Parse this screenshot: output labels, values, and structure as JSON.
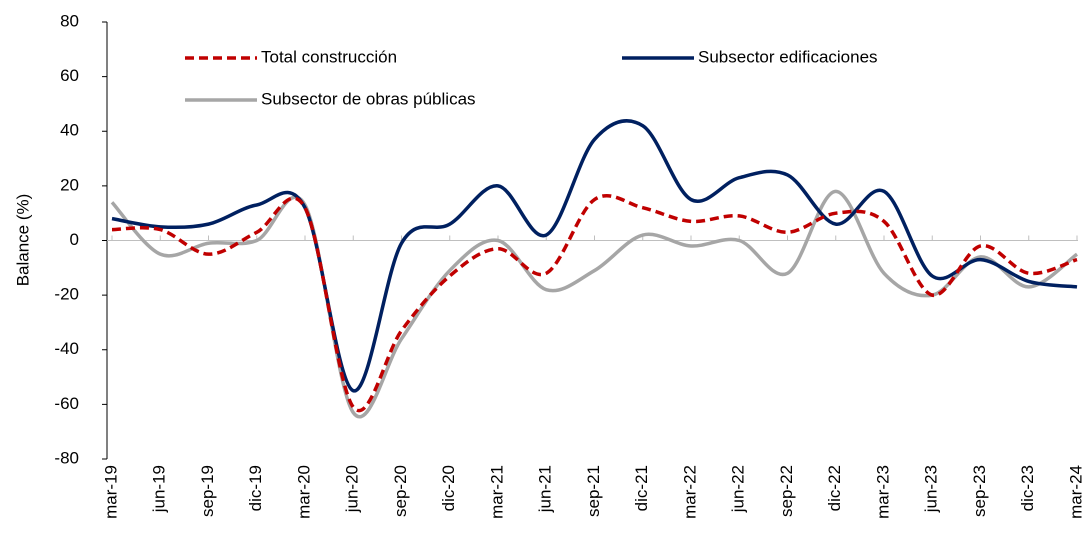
{
  "chart_data": {
    "type": "line",
    "y_label": "Balance (%)",
    "categories": [
      "mar-19",
      "jun-19",
      "sep-19",
      "dic-19",
      "mar-20",
      "jun-20",
      "sep-20",
      "dic-20",
      "mar-21",
      "jun-21",
      "sep-21",
      "dic-21",
      "mar-22",
      "jun-22",
      "sep-22",
      "dic-22",
      "mar-23",
      "jun-23",
      "sep-23",
      "dic-23",
      "mar-24"
    ],
    "series": [
      {
        "name": "Total construcción",
        "color": "#c00000",
        "dash": true,
        "values": [
          4,
          4,
          -5,
          3,
          12,
          -61,
          -33,
          -13,
          -3,
          -12,
          15,
          12,
          7,
          9,
          3,
          10,
          7,
          -20,
          -2,
          -12,
          -7
        ]
      },
      {
        "name": "Subsector edificaciones",
        "color": "#002060",
        "dash": false,
        "values": [
          8,
          5,
          6,
          13,
          12,
          -55,
          -1,
          6,
          20,
          2,
          37,
          42,
          15,
          23,
          24,
          6,
          18,
          -13,
          -7,
          -15,
          -17
        ]
      },
      {
        "name": "Subsector de obras públicas",
        "color": "#a6a6a6",
        "dash": false,
        "values": [
          14,
          -5,
          -1,
          0,
          13,
          -63,
          -36,
          -11,
          0,
          -18,
          -11,
          2,
          -2,
          0,
          -12,
          18,
          -12,
          -20,
          -6,
          -17,
          -5
        ]
      }
    ],
    "ylim": [
      -80,
      80
    ],
    "yticks": [
      -80,
      -60,
      -40,
      -20,
      0,
      20,
      40,
      60,
      80
    ],
    "grid": false
  }
}
